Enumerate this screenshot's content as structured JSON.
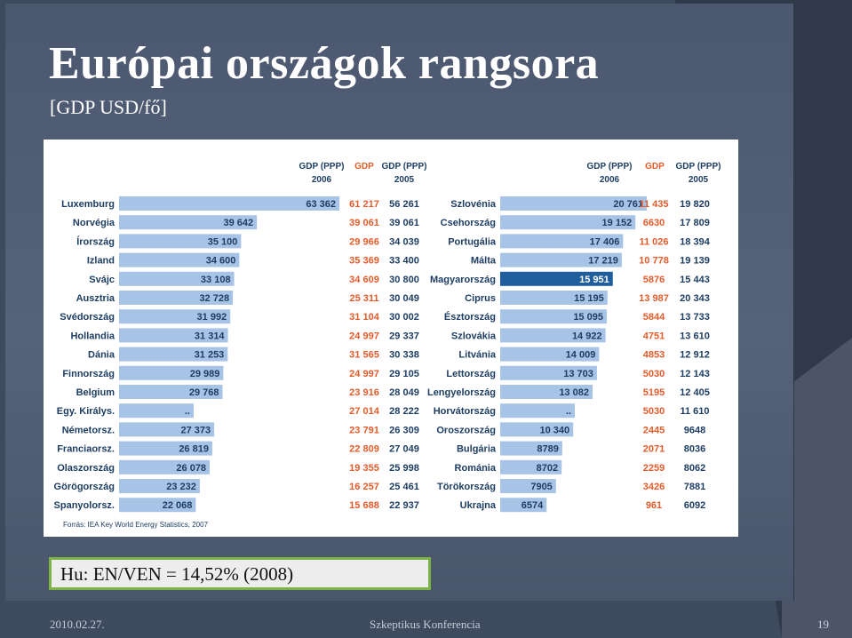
{
  "slide": {
    "title": "Európai országok rangsora",
    "subtitle": "[GDP USD/fő]",
    "note": "Hu: EN/VEN = 14,52% (2008)",
    "footer_date": "2010.02.27.",
    "footer_center": "Szkeptikus Konferencia",
    "footer_page": "19"
  },
  "colors": {
    "bar": "#a7c4e6",
    "bar_highlight": "#1f5e9c",
    "value_red": "#e45b2a",
    "text_dark": "#1d3d63",
    "note_border": "#7cb342"
  },
  "chart_data": [
    {
      "type": "bar",
      "orientation": "horizontal",
      "columns": {
        "gdp_ppp_2006": "GDP (PPP)\n2006",
        "gdp": "GDP",
        "gdp_ppp_2005": "GDP (PPP)\n2005"
      },
      "column_header_lines": {
        "gdp_ppp_2006": [
          "GDP (PPP)",
          "2006"
        ],
        "gdp": [
          "GDP",
          ""
        ],
        "gdp_ppp_2005": [
          "GDP (PPP)",
          "2005"
        ]
      },
      "xlim": [
        0,
        63362
      ],
      "rows": [
        {
          "country": "Luxemburg",
          "gdp_ppp_2006": 63362,
          "gdp_ppp_2006_label": "63 362",
          "gdp": "61 217",
          "gdp_ppp_2005": "56 261"
        },
        {
          "country": "Norvégia",
          "gdp_ppp_2006": 39642,
          "gdp_ppp_2006_label": "39 642",
          "gdp": "39 061",
          "gdp_ppp_2005": "39 061"
        },
        {
          "country": "Írország",
          "gdp_ppp_2006": 35100,
          "gdp_ppp_2006_label": "35 100",
          "gdp": "29 966",
          "gdp_ppp_2005": "34 039"
        },
        {
          "country": "Izland",
          "gdp_ppp_2006": 34600,
          "gdp_ppp_2006_label": "34 600",
          "gdp": "35 369",
          "gdp_ppp_2005": "33 400"
        },
        {
          "country": "Svájc",
          "gdp_ppp_2006": 33108,
          "gdp_ppp_2006_label": "33 108",
          "gdp": "34 609",
          "gdp_ppp_2005": "30 800"
        },
        {
          "country": "Ausztria",
          "gdp_ppp_2006": 32728,
          "gdp_ppp_2006_label": "32 728",
          "gdp": "25 311",
          "gdp_ppp_2005": "30 049"
        },
        {
          "country": "Svédország",
          "gdp_ppp_2006": 31992,
          "gdp_ppp_2006_label": "31 992",
          "gdp": "31 104",
          "gdp_ppp_2005": "30 002"
        },
        {
          "country": "Hollandia",
          "gdp_ppp_2006": 31314,
          "gdp_ppp_2006_label": "31 314",
          "gdp": "24 997",
          "gdp_ppp_2005": "29 337"
        },
        {
          "country": "Dánia",
          "gdp_ppp_2006": 31253,
          "gdp_ppp_2006_label": "31 253",
          "gdp": "31 565",
          "gdp_ppp_2005": "30 338"
        },
        {
          "country": "Finnország",
          "gdp_ppp_2006": 29989,
          "gdp_ppp_2006_label": "29 989",
          "gdp": "24 997",
          "gdp_ppp_2005": "29 105"
        },
        {
          "country": "Belgium",
          "gdp_ppp_2006": 29768,
          "gdp_ppp_2006_label": "29 768",
          "gdp": "23 916",
          "gdp_ppp_2005": "28 049"
        },
        {
          "country": "Egy. Királys.",
          "gdp_ppp_2006": null,
          "gdp_ppp_2006_label": "..",
          "gdp": "27 014",
          "gdp_ppp_2005": "28 222"
        },
        {
          "country": "Németorsz.",
          "gdp_ppp_2006": 27373,
          "gdp_ppp_2006_label": "27 373",
          "gdp": "23 791",
          "gdp_ppp_2005": "26 309"
        },
        {
          "country": "Franciaorsz.",
          "gdp_ppp_2006": 26819,
          "gdp_ppp_2006_label": "26 819",
          "gdp": "22 809",
          "gdp_ppp_2005": "27 049"
        },
        {
          "country": "Olaszország",
          "gdp_ppp_2006": 26078,
          "gdp_ppp_2006_label": "26 078",
          "gdp": "19 355",
          "gdp_ppp_2005": "25 998"
        },
        {
          "country": "Görögország",
          "gdp_ppp_2006": 23232,
          "gdp_ppp_2006_label": "23 232",
          "gdp": "16 257",
          "gdp_ppp_2005": "25 461"
        },
        {
          "country": "Spanyolorsz.",
          "gdp_ppp_2006": 22068,
          "gdp_ppp_2006_label": "22 068",
          "gdp": "15 688",
          "gdp_ppp_2005": "22 937"
        }
      ]
    },
    {
      "type": "bar",
      "orientation": "horizontal",
      "columns": {
        "gdp_ppp_2006": "GDP (PPP)\n2006",
        "gdp": "GDP",
        "gdp_ppp_2005": "GDP (PPP)\n2005"
      },
      "column_header_lines": {
        "gdp_ppp_2006": [
          "GDP (PPP)",
          "2006"
        ],
        "gdp": [
          "GDP",
          ""
        ],
        "gdp_ppp_2005": [
          "GDP (PPP)",
          "2005"
        ]
      },
      "xlim": [
        0,
        20761
      ],
      "highlight": "Magyarország",
      "rows": [
        {
          "country": "Szlovénia",
          "gdp_ppp_2006": 20761,
          "gdp_ppp_2006_label": "20 761",
          "gdp": "11 435",
          "gdp_ppp_2005": "19 820"
        },
        {
          "country": "Csehország",
          "gdp_ppp_2006": 19152,
          "gdp_ppp_2006_label": "19 152",
          "gdp": "6630",
          "gdp_ppp_2005": "17 809"
        },
        {
          "country": "Portugália",
          "gdp_ppp_2006": 17406,
          "gdp_ppp_2006_label": "17 406",
          "gdp": "11 026",
          "gdp_ppp_2005": "18 394"
        },
        {
          "country": "Málta",
          "gdp_ppp_2006": 17219,
          "gdp_ppp_2006_label": "17 219",
          "gdp": "10 778",
          "gdp_ppp_2005": "19 139"
        },
        {
          "country": "Magyarország",
          "gdp_ppp_2006": 15951,
          "gdp_ppp_2006_label": "15 951",
          "gdp": "5876",
          "gdp_ppp_2005": "15 443"
        },
        {
          "country": "Ciprus",
          "gdp_ppp_2006": 15195,
          "gdp_ppp_2006_label": "15 195",
          "gdp": "13 987",
          "gdp_ppp_2005": "20 343"
        },
        {
          "country": "Észtország",
          "gdp_ppp_2006": 15095,
          "gdp_ppp_2006_label": "15 095",
          "gdp": "5844",
          "gdp_ppp_2005": "13 733"
        },
        {
          "country": "Szlovákia",
          "gdp_ppp_2006": 14922,
          "gdp_ppp_2006_label": "14 922",
          "gdp": "4751",
          "gdp_ppp_2005": "13 610"
        },
        {
          "country": "Litvánia",
          "gdp_ppp_2006": 14009,
          "gdp_ppp_2006_label": "14 009",
          "gdp": "4853",
          "gdp_ppp_2005": "12 912"
        },
        {
          "country": "Lettország",
          "gdp_ppp_2006": 13703,
          "gdp_ppp_2006_label": "13 703",
          "gdp": "5030",
          "gdp_ppp_2005": "12 143"
        },
        {
          "country": "Lengyelország",
          "gdp_ppp_2006": 13082,
          "gdp_ppp_2006_label": "13 082",
          "gdp": "5195",
          "gdp_ppp_2005": "12 405"
        },
        {
          "country": "Horvátország",
          "gdp_ppp_2006": null,
          "gdp_ppp_2006_label": "..",
          "gdp": "5030",
          "gdp_ppp_2005": "11 610"
        },
        {
          "country": "Oroszország",
          "gdp_ppp_2006": 10340,
          "gdp_ppp_2006_label": "10 340",
          "gdp": "2445",
          "gdp_ppp_2005": "9648"
        },
        {
          "country": "Bulgária",
          "gdp_ppp_2006": 8789,
          "gdp_ppp_2006_label": "8789",
          "gdp": "2071",
          "gdp_ppp_2005": "8036"
        },
        {
          "country": "Románia",
          "gdp_ppp_2006": 8702,
          "gdp_ppp_2006_label": "8702",
          "gdp": "2259",
          "gdp_ppp_2005": "8062"
        },
        {
          "country": "Törökország",
          "gdp_ppp_2006": 7905,
          "gdp_ppp_2006_label": "7905",
          "gdp": "3426",
          "gdp_ppp_2005": "7881"
        },
        {
          "country": "Ukrajna",
          "gdp_ppp_2006": 6574,
          "gdp_ppp_2006_label": "6574",
          "gdp": "961",
          "gdp_ppp_2005": "6092"
        }
      ]
    }
  ],
  "source": "Forrás: IEA Key World Energy Statistics, 2007"
}
